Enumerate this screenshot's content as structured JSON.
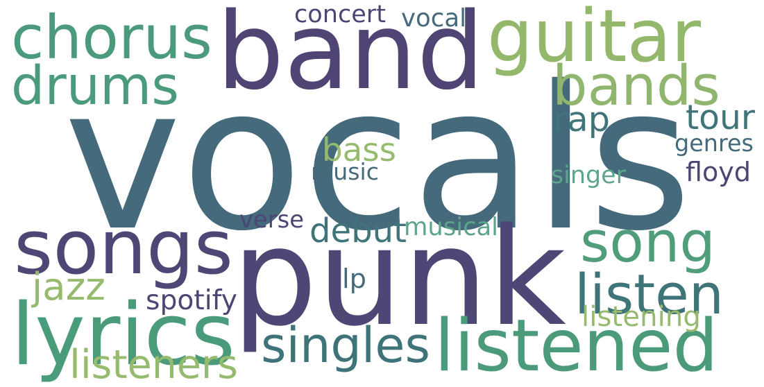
{
  "words": [
    {
      "text": "vocals",
      "color": "#446a7b"
    },
    {
      "text": "punk",
      "color": "#4c4774"
    },
    {
      "text": "band",
      "color": "#4f4473"
    },
    {
      "text": "songs",
      "color": "#4e4675"
    },
    {
      "text": "lyrics",
      "color": "#4a9b7a"
    },
    {
      "text": "listened",
      "color": "#4b9a79"
    },
    {
      "text": "chorus",
      "color": "#4c9a7c"
    },
    {
      "text": "drums",
      "color": "#4c9a7c"
    },
    {
      "text": "guitar",
      "color": "#93b86b"
    },
    {
      "text": "bands",
      "color": "#90b56c"
    },
    {
      "text": "song",
      "color": "#4f9d7b"
    },
    {
      "text": "listen",
      "color": "#3f7478"
    },
    {
      "text": "singles",
      "color": "#3e7379"
    },
    {
      "text": "debut",
      "color": "#3f7478"
    },
    {
      "text": "tour",
      "color": "#3f7478"
    },
    {
      "text": "rap",
      "color": "#3f7478"
    },
    {
      "text": "bass",
      "color": "#96bb6e"
    },
    {
      "text": "listeners",
      "color": "#96bb6e"
    },
    {
      "text": "jazz",
      "color": "#96bb6e"
    },
    {
      "text": "listening",
      "color": "#96bb6e"
    },
    {
      "text": "musical",
      "color": "#5da48a"
    },
    {
      "text": "verse",
      "color": "#4b4774"
    },
    {
      "text": "spotify",
      "color": "#4b4774"
    },
    {
      "text": "concert",
      "color": "#4b4774"
    },
    {
      "text": "vocal",
      "color": "#446a7b"
    },
    {
      "text": "genres",
      "color": "#446a7b"
    },
    {
      "text": "floyd",
      "color": "#4b4774"
    },
    {
      "text": "singer",
      "color": "#5ea58d"
    },
    {
      "text": "music",
      "color": "#446a7b"
    },
    {
      "text": "lp",
      "color": "#446a7b"
    }
  ]
}
